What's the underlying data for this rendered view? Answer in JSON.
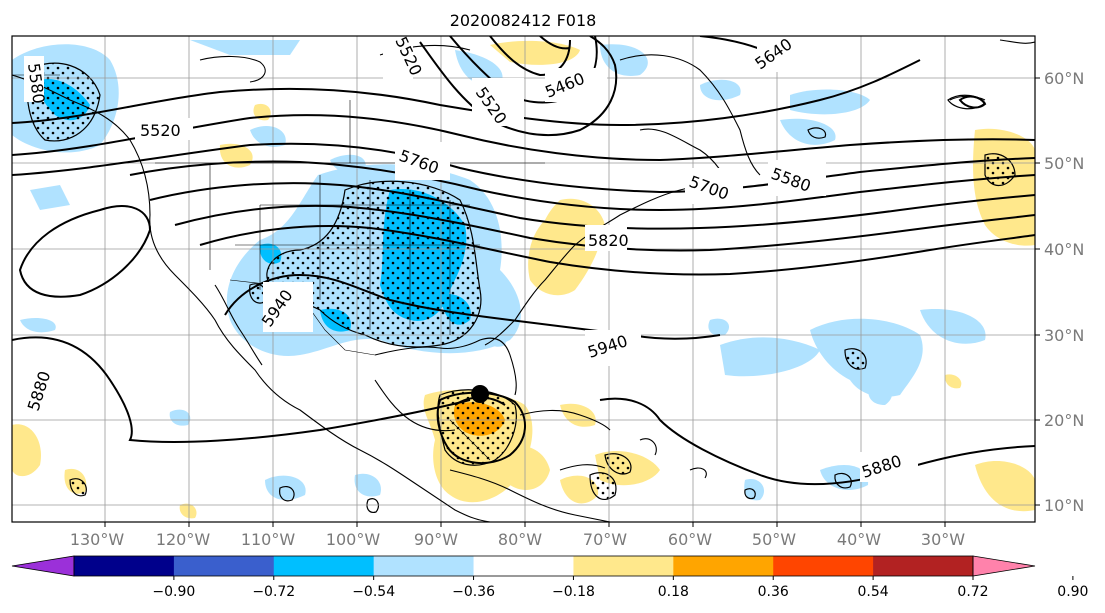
{
  "title": "2020082412 F018",
  "map": {
    "lon_labels": [
      "130°W",
      "120°W",
      "110°W",
      "100°W",
      "90°W",
      "80°W",
      "70°W",
      "60°W",
      "50°W",
      "40°W",
      "30°W"
    ],
    "lat_labels": [
      "60°N",
      "50°N",
      "40°N",
      "30°N",
      "20°N",
      "10°N"
    ],
    "contour_labels": [
      "5580",
      "5520",
      "5460",
      "5640",
      "5520",
      "5760",
      "5700",
      "5580",
      "5820",
      "5940",
      "5940",
      "5880",
      "5880",
      "5520"
    ],
    "storm_marker": "storm-center"
  },
  "colorbar": {
    "ticks": [
      "−0.90",
      "−0.72",
      "−0.54",
      "−0.36",
      "−0.18",
      "0.18",
      "0.36",
      "0.54",
      "0.72",
      "0.90"
    ],
    "colors": [
      "#9b30d9",
      "#00008b",
      "#3a5fcd",
      "#00bfff",
      "#b0e2ff",
      "#ffffff",
      "#ffe88c",
      "#ffa500",
      "#ff4500",
      "#b22222",
      "#ff82ab"
    ]
  },
  "shading_colors": {
    "light_blue": "#b0e2ff",
    "blue": "#00bfff",
    "light_yellow": "#ffe88c",
    "orange": "#ffa500"
  }
}
